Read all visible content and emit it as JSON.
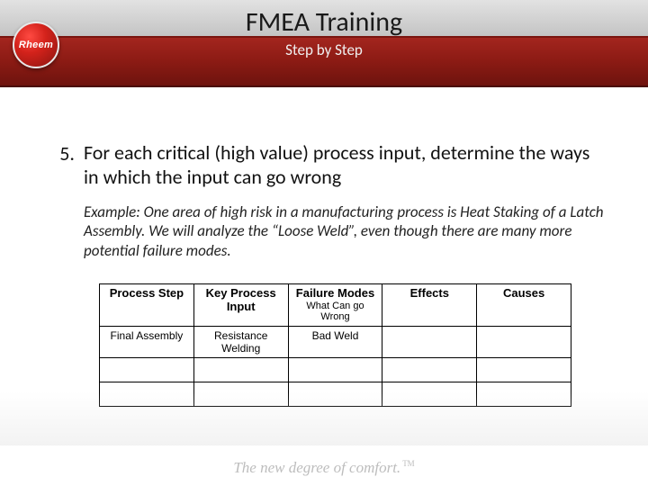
{
  "header": {
    "logo_text": "Rheem",
    "title": "FMEA Training",
    "subtitle": "Step by Step"
  },
  "body": {
    "list_number": "5.",
    "list_text": "For each critical (high value) process input, determine the ways in which the input can go wrong",
    "example": "Example: One area of high risk in a manufacturing process is Heat Staking of a Latch Assembly. We will analyze the “Loose Weld”, even though there are many more potential failure modes."
  },
  "table": {
    "columns": [
      {
        "label": "Process Step",
        "sub": ""
      },
      {
        "label": "Key Process Input",
        "sub": ""
      },
      {
        "label": "Failure Modes",
        "sub": "What Can go Wrong"
      },
      {
        "label": "Effects",
        "sub": ""
      },
      {
        "label": "Causes",
        "sub": ""
      }
    ],
    "rows": [
      [
        "Final Assembly",
        "Resistance Welding",
        "Bad Weld",
        "",
        ""
      ],
      [
        "",
        "",
        "",
        "",
        ""
      ],
      [
        "",
        "",
        "",
        "",
        ""
      ]
    ],
    "col_widths": [
      "20%",
      "20%",
      "20%",
      "20%",
      "20%"
    ]
  },
  "footer": {
    "tagline": "The new degree of comfort.",
    "tm": "TM"
  }
}
